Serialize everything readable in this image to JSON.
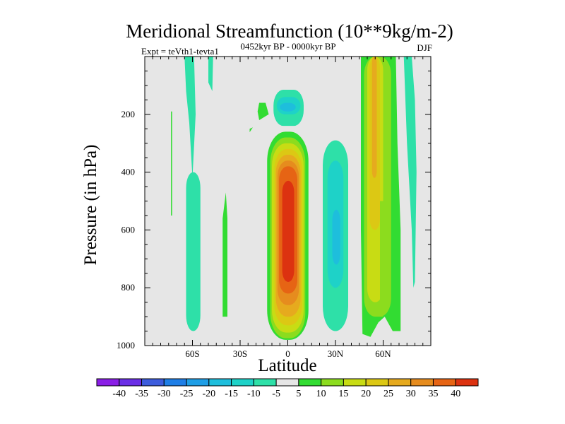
{
  "chart_data": {
    "type": "filled-contour",
    "title": "Meridional Streamfunction (10**9kg/m-2)",
    "left_subtitle": "Expt = teVth1-tevta1",
    "center_subtitle": "0452kyr BP - 0000kyr BP",
    "right_subtitle": "DJF",
    "xlabel": "Latitude",
    "ylabel": "Pressure (in hPa)",
    "xlim": [
      -90,
      90
    ],
    "ylim": [
      1000,
      0
    ],
    "x_ticks": [
      {
        "value": -60,
        "label": "60S"
      },
      {
        "value": -30,
        "label": "30S"
      },
      {
        "value": 0,
        "label": "0"
      },
      {
        "value": 30,
        "label": "30N"
      },
      {
        "value": 60,
        "label": "60N"
      }
    ],
    "y_ticks": [
      {
        "value": 200,
        "label": "200"
      },
      {
        "value": 400,
        "label": "400"
      },
      {
        "value": 600,
        "label": "600"
      },
      {
        "value": 800,
        "label": "800"
      },
      {
        "value": 1000,
        "label": "1000"
      }
    ],
    "background_color": "#e6e6e6",
    "colorbar": {
      "levels": [
        -40,
        -35,
        -30,
        -25,
        -20,
        -15,
        -10,
        -5,
        5,
        10,
        15,
        20,
        25,
        30,
        35,
        40
      ],
      "labels": [
        "-40",
        "-35",
        "-30",
        "-25",
        "-20",
        "-15",
        "-10",
        "-5",
        "5",
        "10",
        "15",
        "20",
        "25",
        "30",
        "35",
        "40"
      ],
      "colors": [
        "#8a1ee6",
        "#6a2ee6",
        "#3c5cdc",
        "#1e7ee6",
        "#1e9ee6",
        "#1ebedc",
        "#1ed2c8",
        "#2ee0a8",
        "#e6e6e6",
        "#32dc32",
        "#8cdc1e",
        "#c8dc14",
        "#dcc814",
        "#e6aa1e",
        "#e68c1e",
        "#e66414",
        "#dc3210"
      ]
    },
    "features": [
      {
        "name": "jet-ring-1",
        "sign": "positive",
        "latitude_range": [
          -13,
          15
        ],
        "pressure_range": [
          280,
          985
        ],
        "peak": 40
      },
      {
        "name": "south-core",
        "sign": "negative",
        "latitude_range": [
          -8,
          8
        ],
        "pressure_range": [
          130,
          220
        ],
        "peak": -20
      },
      {
        "name": "north-lobe",
        "sign": "negative",
        "latitude_range": [
          22,
          38
        ],
        "pressure_range": [
          290,
          950
        ],
        "peak": -15
      },
      {
        "name": "north-band",
        "sign": "positive",
        "latitude_range": [
          46,
          70
        ],
        "pressure_range": [
          0,
          950
        ],
        "peak": 25
      },
      {
        "name": "south-band",
        "sign": "negative",
        "latitude_range": [
          -64,
          -55
        ],
        "pressure_range": [
          0,
          950
        ],
        "peak": -5
      }
    ]
  }
}
